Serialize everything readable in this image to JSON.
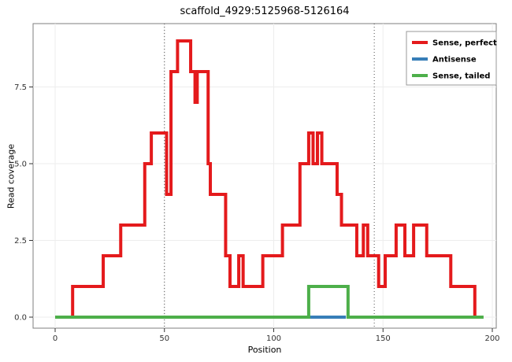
{
  "chart_data": {
    "type": "line",
    "title": "scaffold_4929:5125968-5126164",
    "xlabel": "Position",
    "ylabel": "Read coverage",
    "xlim": [
      -10,
      207
    ],
    "ylim": [
      -0.4,
      9.6
    ],
    "x_ticks": [
      0,
      50,
      100,
      150,
      200
    ],
    "y_ticks": [
      0.0,
      2.5,
      5.0,
      7.5
    ],
    "grid": true,
    "vlines": [
      50,
      146
    ],
    "vline_style": "dotted",
    "legend_position": "top-right",
    "panel_border_color": "#7f7f7f",
    "grid_color": "#ededed",
    "series": [
      {
        "name": "Sense, perfect",
        "color": "#e41a1c",
        "draw": "step",
        "end": 194,
        "steps": [
          [
            0,
            0
          ],
          [
            8,
            1
          ],
          [
            22,
            2
          ],
          [
            30,
            3
          ],
          [
            41,
            5
          ],
          [
            44,
            6
          ],
          [
            51,
            4
          ],
          [
            53,
            8
          ],
          [
            56,
            9
          ],
          [
            62,
            8
          ],
          [
            64,
            7
          ],
          [
            65,
            8
          ],
          [
            70,
            5
          ],
          [
            71,
            4
          ],
          [
            78,
            2
          ],
          [
            80,
            1
          ],
          [
            84,
            2
          ],
          [
            86,
            1
          ],
          [
            95,
            2
          ],
          [
            104,
            3
          ],
          [
            112,
            5
          ],
          [
            116,
            6
          ],
          [
            118,
            5
          ],
          [
            120,
            6
          ],
          [
            122,
            5
          ],
          [
            129,
            4
          ],
          [
            131,
            3
          ],
          [
            138,
            2
          ],
          [
            141,
            3
          ],
          [
            143,
            2
          ],
          [
            148,
            1
          ],
          [
            151,
            2
          ],
          [
            156,
            3
          ],
          [
            160,
            2
          ],
          [
            164,
            3
          ],
          [
            170,
            2
          ],
          [
            181,
            1
          ],
          [
            192,
            0
          ]
        ]
      },
      {
        "name": "Antisense",
        "color": "#377eb8",
        "draw": "step",
        "end": 133,
        "steps": [
          [
            112,
            0
          ]
        ]
      },
      {
        "name": "Sense, tailed",
        "color": "#4daf4a",
        "draw": "step",
        "end": 196,
        "steps": [
          [
            0,
            0
          ],
          [
            116,
            1
          ],
          [
            134,
            0
          ]
        ]
      }
    ]
  }
}
